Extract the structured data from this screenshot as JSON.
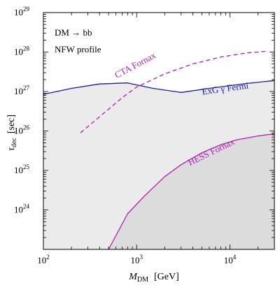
{
  "chart_data": {
    "type": "line",
    "xlabel_main": "M",
    "xlabel_sub": "DM",
    "xlabel_unit": "[GeV]",
    "ylabel_main": "τ",
    "ylabel_sub": "dec",
    "ylabel_unit": "[sec]",
    "xscale": "log",
    "yscale": "log",
    "xlim": [
      100,
      30000
    ],
    "ylim": [
      1e+23,
      1e+29
    ],
    "x_ticks": [
      {
        "value": 100,
        "base": "10",
        "exp": "2"
      },
      {
        "value": 1000,
        "base": "10",
        "exp": "3"
      },
      {
        "value": 10000,
        "base": "10",
        "exp": "4"
      }
    ],
    "y_ticks": [
      {
        "value": 1e+24,
        "base": "10",
        "exp": "24"
      },
      {
        "value": 1e+25,
        "base": "10",
        "exp": "25"
      },
      {
        "value": 1e+26,
        "base": "10",
        "exp": "26"
      },
      {
        "value": 1e+27,
        "base": "10",
        "exp": "27"
      },
      {
        "value": 1e+28,
        "base": "10",
        "exp": "28"
      },
      {
        "value": 1e+29,
        "base": "10",
        "exp": "29"
      }
    ],
    "legend_text": [
      "DM → bb",
      "NFW profile"
    ],
    "series": [
      {
        "name": "ExG γ Fermi",
        "color": "#1a1aa8",
        "style": "solid",
        "fill": "#ebebeb",
        "x": [
          100,
          200,
          400,
          800,
          1500,
          3000,
          6000,
          15000,
          30000
        ],
        "y": [
          8.5e+26,
          1.2e+27,
          1.55e+27,
          1.65e+27,
          1.2e+27,
          9.5e+26,
          1.2e+27,
          1.6e+27,
          1.9e+27
        ]
      },
      {
        "name": "HESS Fornax",
        "color": "#b020b0",
        "style": "solid",
        "fill": "#dcdcdc",
        "x": [
          500,
          800,
          1200,
          2000,
          3000,
          5000,
          8000,
          12000,
          20000,
          30000
        ],
        "y": [
          1e+23,
          8e+23,
          2.2e+24,
          7e+24,
          1.4e+25,
          2.8e+25,
          4.5e+25,
          6e+25,
          7.5e+25,
          8.5e+25
        ]
      },
      {
        "name": "CTA Fornax",
        "color": "#b020b0",
        "style": "dashed",
        "x": [
          250,
          400,
          700,
          1000,
          2000,
          4000,
          8000,
          15000,
          25000
        ],
        "y": [
          9e+25,
          2.3e+26,
          7e+26,
          1.3e+27,
          2.8e+27,
          5e+27,
          7.5e+27,
          9.5e+27,
          1.05e+28
        ]
      }
    ],
    "annotations": [
      {
        "text": "CTA Fornax",
        "color": "#b020b0",
        "x": 1000,
        "y": 4e+27,
        "rotate": -28
      },
      {
        "text": "ExG γ Fermi",
        "color": "#1a1aa8",
        "x": 9000,
        "y": 1e+27,
        "rotate": -8
      },
      {
        "text": "HESS Fornax",
        "color": "#b020b0",
        "x": 6500,
        "y": 2.5e+25,
        "rotate": -26
      }
    ]
  }
}
